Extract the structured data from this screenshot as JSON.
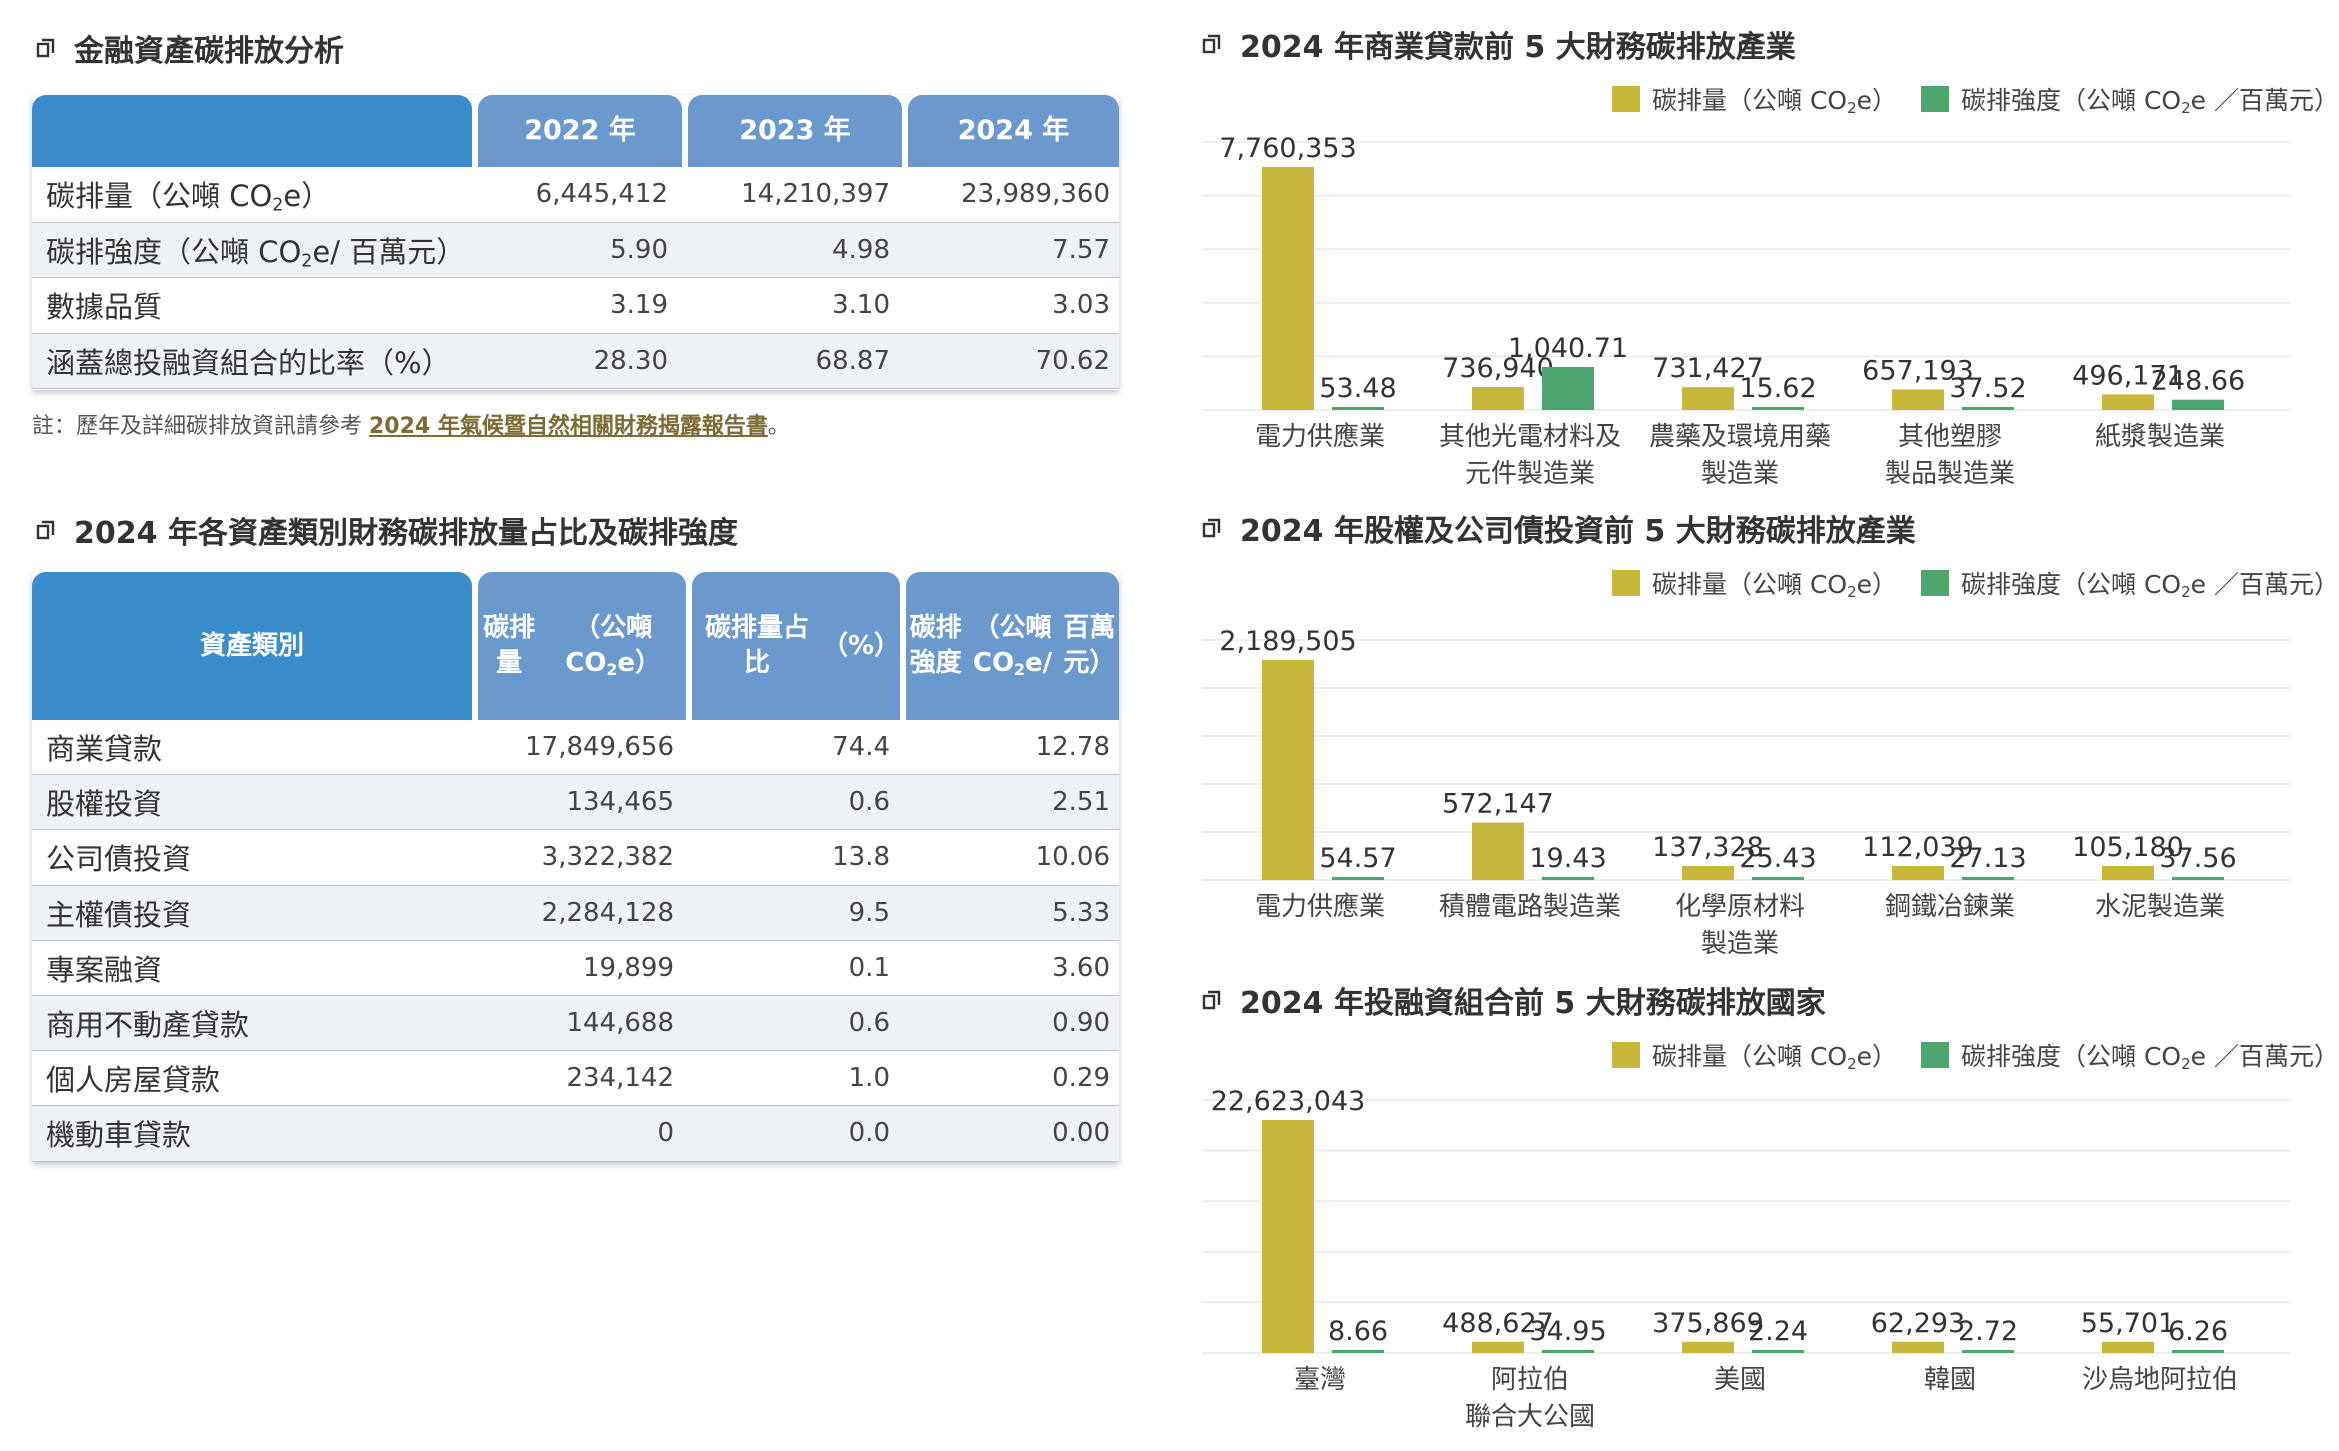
{
  "colors": {
    "emission": "#c8b73b",
    "intensity": "#4ca66d",
    "header_blue": "#3a8ccb",
    "header_light": "#6b99ce",
    "link": "#7d6a34"
  },
  "section1": {
    "title": "金融資產碳排放分析",
    "headers": [
      "2022 年",
      "2023 年",
      "2024 年"
    ],
    "rows": [
      {
        "label": "碳排量（公噸 CO₂e）",
        "values": [
          "6,445,412",
          "14,210,397",
          "23,989,360"
        ]
      },
      {
        "label": "碳排強度（公噸 CO₂e/ 百萬元）",
        "values": [
          "5.90",
          "4.98",
          "7.57"
        ]
      },
      {
        "label": "數據品質",
        "values": [
          "3.19",
          "3.10",
          "3.03"
        ]
      },
      {
        "label": "涵蓋總投融資組合的比率（%）",
        "values": [
          "28.30",
          "68.87",
          "70.62"
        ]
      }
    ],
    "note_prefix": "註：歷年及詳細碳排放資訊請參考 ",
    "note_link": "2024 年氣候暨自然相關財務揭露報告書",
    "note_suffix": "。"
  },
  "section2": {
    "title": "2024 年各資產類別財務碳排放量占比及碳排強度",
    "headers": [
      "資產類別",
      "碳排量\n（公噸 CO₂e）",
      "碳排量占比\n（%）",
      "碳排強度\n（公噸 CO₂e/\n百萬元）"
    ],
    "rows": [
      {
        "label": "商業貸款",
        "values": [
          "17,849,656",
          "74.4",
          "12.78"
        ]
      },
      {
        "label": "股權投資",
        "values": [
          "134,465",
          "0.6",
          "2.51"
        ]
      },
      {
        "label": "公司債投資",
        "values": [
          "3,322,382",
          "13.8",
          "10.06"
        ]
      },
      {
        "label": "主權債投資",
        "values": [
          "2,284,128",
          "9.5",
          "5.33"
        ]
      },
      {
        "label": "專案融資",
        "values": [
          "19,899",
          "0.1",
          "3.60"
        ]
      },
      {
        "label": "商用不動產貸款",
        "values": [
          "144,688",
          "0.6",
          "0.90"
        ]
      },
      {
        "label": "個人房屋貸款",
        "values": [
          "234,142",
          "1.0",
          "0.29"
        ]
      },
      {
        "label": "機動車貸款",
        "values": [
          "0",
          "0.0",
          "0.00"
        ]
      }
    ]
  },
  "legend": {
    "emission": "碳排量（公噸 CO₂e）",
    "intensity": "碳排強度（公噸 CO₂e ／百萬元）"
  },
  "chart_data": [
    {
      "type": "bar",
      "title": "2024 年商業貸款前 5 大財務碳排放產業",
      "categories": [
        "電力供應業",
        "其他光電材料及\n元件製造業",
        "農藥及環境用藥\n製造業",
        "其他塑膠\n製品製造業",
        "紙漿製造業"
      ],
      "series": [
        {
          "name": "碳排量（公噸 CO₂e）",
          "values": [
            7760353,
            736940,
            731427,
            657193,
            496171
          ],
          "labels": [
            "7,760,353",
            "736,940",
            "731,427",
            "657,193",
            "496,171"
          ]
        },
        {
          "name": "碳排強度（公噸 CO₂e ／百萬元）",
          "values": [
            53.48,
            1040.71,
            15.62,
            37.52,
            248.66
          ],
          "labels": [
            "53.48",
            "1,040.71",
            "15.62",
            "37.52",
            "248.66"
          ]
        }
      ]
    },
    {
      "type": "bar",
      "title": "2024 年股權及公司債投資前 5 大財務碳排放產業",
      "categories": [
        "電力供應業",
        "積體電路製造業",
        "化學原材料\n製造業",
        "鋼鐵冶鍊業",
        "水泥製造業"
      ],
      "series": [
        {
          "name": "碳排量（公噸 CO₂e）",
          "values": [
            2189505,
            572147,
            137328,
            112039,
            105180
          ],
          "labels": [
            "2,189,505",
            "572,147",
            "137,328",
            "112,039",
            "105,180"
          ]
        },
        {
          "name": "碳排強度（公噸 CO₂e ／百萬元）",
          "values": [
            54.57,
            19.43,
            25.43,
            27.13,
            37.56
          ],
          "labels": [
            "54.57",
            "19.43",
            "25.43",
            "27.13",
            "37.56"
          ]
        }
      ]
    },
    {
      "type": "bar",
      "title": "2024 年投融資組合前 5 大財務碳排放國家",
      "categories": [
        "臺灣",
        "阿拉伯\n聯合大公國",
        "美國",
        "韓國",
        "沙烏地阿拉伯"
      ],
      "series": [
        {
          "name": "碳排量（公噸 CO₂e）",
          "values": [
            22623043,
            488627,
            375869,
            62293,
            55701
          ],
          "labels": [
            "22,623,043",
            "488,627",
            "375,869",
            "62,293",
            "55,701"
          ]
        },
        {
          "name": "碳排強度（公噸 CO₂e ／百萬元）",
          "values": [
            8.66,
            34.95,
            2.24,
            2.72,
            6.26
          ],
          "labels": [
            "8.66",
            "34.95",
            "2.24",
            "2.72",
            "6.26"
          ]
        }
      ]
    }
  ]
}
